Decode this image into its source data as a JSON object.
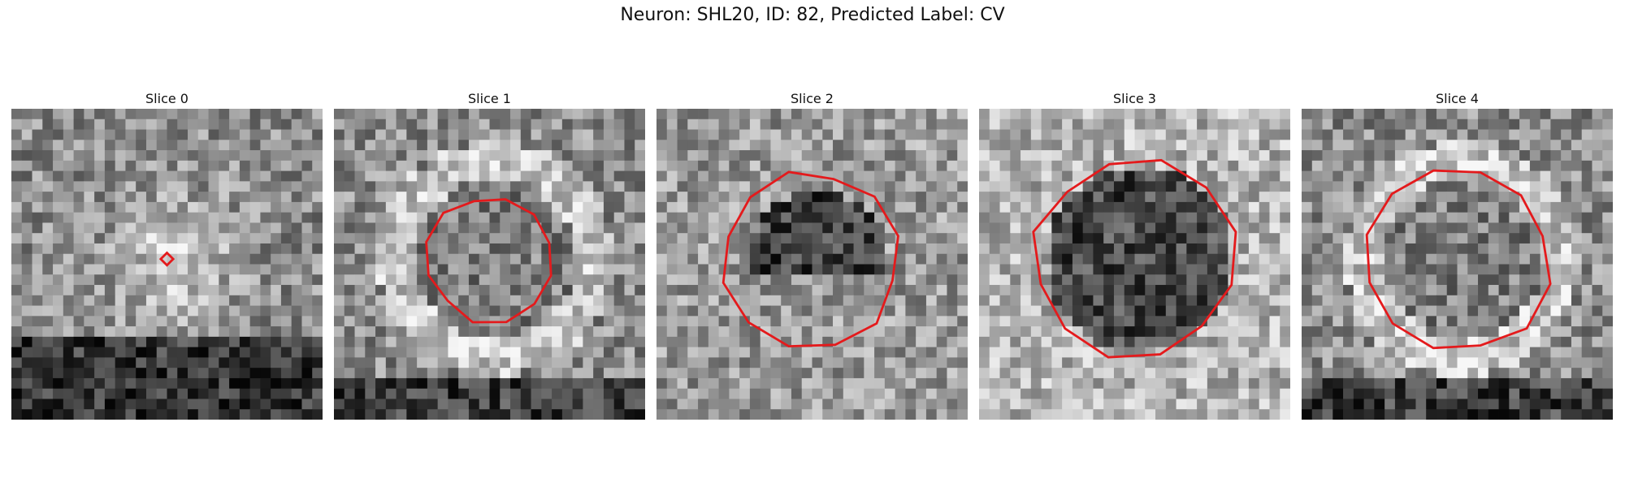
{
  "title": "Neuron: SHL20, ID: 82, Predicted Label: CV",
  "contour_color": "#e41a1c",
  "grid_size": 30,
  "slices": [
    {
      "label": "Slice 0",
      "seed": 11,
      "dark_spot": 0.1,
      "contour_radius": 0.02,
      "style": "bright-center"
    },
    {
      "label": "Slice 1",
      "seed": 23,
      "dark_spot": 0.25,
      "contour_radius": 0.2,
      "style": "ring"
    },
    {
      "label": "Slice 2",
      "seed": 37,
      "dark_spot": 0.45,
      "contour_radius": 0.28,
      "style": "dark-blob"
    },
    {
      "label": "Slice 3",
      "seed": 51,
      "dark_spot": 0.6,
      "contour_radius": 0.32,
      "style": "dark-core"
    },
    {
      "label": "Slice 4",
      "seed": 67,
      "dark_spot": 0.4,
      "contour_radius": 0.3,
      "style": "ring"
    }
  ]
}
